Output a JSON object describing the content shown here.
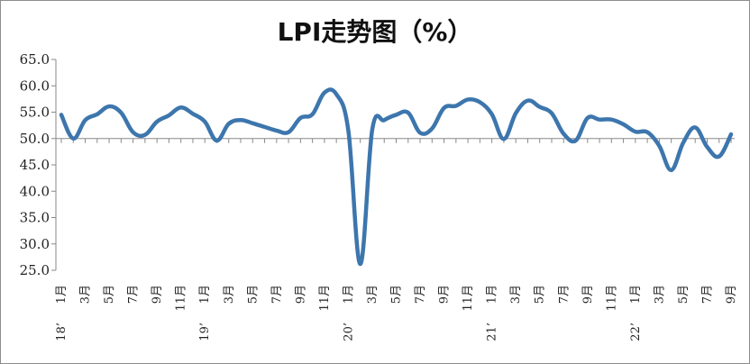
{
  "chart_data": {
    "type": "line",
    "title": "LPI走势图（%）",
    "xlabel": "",
    "ylabel": "",
    "ylim": [
      25,
      65
    ],
    "yticks": [
      "65.0",
      "60.0",
      "55.0",
      "50.0",
      "45.0",
      "40.0",
      "35.0",
      "30.0",
      "25.0"
    ],
    "baseline": 50,
    "grid": false,
    "color": "#3d76ad",
    "x": [
      "18’1月",
      "18’2月",
      "18’3月",
      "18’4月",
      "18’5月",
      "18’6月",
      "18’7月",
      "18’8月",
      "18’9月",
      "18’10月",
      "18’11月",
      "18’12月",
      "19’1月",
      "19’2月",
      "19’3月",
      "19’4月",
      "19’5月",
      "19’6月",
      "19’7月",
      "19’8月",
      "19’9月",
      "19’10月",
      "19’11月",
      "19’12月",
      "20’1月",
      "20’2月",
      "20’3月",
      "20’4月",
      "20’5月",
      "20’6月",
      "20’7月",
      "20’8月",
      "20’9月",
      "20’10月",
      "20’11月",
      "20’12月",
      "21’1月",
      "21’2月",
      "21’3月",
      "21’4月",
      "21’5月",
      "21’6月",
      "21’7月",
      "21’8月",
      "21’9月",
      "21’10月",
      "21’11月",
      "21’12月",
      "22’1月",
      "22’2月",
      "22’3月",
      "22’4月",
      "22’5月",
      "22’6月",
      "22’7月",
      "22’8月",
      "22’9月"
    ],
    "values": [
      54.5,
      50.0,
      53.5,
      54.6,
      56.1,
      54.9,
      51.2,
      50.7,
      53.2,
      54.4,
      55.9,
      54.7,
      53.2,
      49.6,
      52.8,
      53.5,
      52.9,
      52.2,
      51.5,
      51.2,
      53.9,
      54.6,
      58.7,
      58.4,
      51.5,
      26.2,
      51.7,
      53.5,
      54.5,
      54.9,
      51.1,
      51.9,
      55.8,
      56.2,
      57.4,
      56.9,
      54.6,
      49.9,
      54.8,
      57.2,
      56.0,
      54.8,
      50.9,
      49.6,
      53.9,
      53.6,
      53.6,
      52.7,
      51.3,
      51.2,
      48.6,
      44.0,
      49.2,
      52.1,
      48.4,
      46.6,
      50.8
    ],
    "xtick_labels": [
      {
        "i": 0,
        "month": "1月",
        "year": "18’"
      },
      {
        "i": 2,
        "month": "3月"
      },
      {
        "i": 4,
        "month": "5月"
      },
      {
        "i": 6,
        "month": "7月"
      },
      {
        "i": 8,
        "month": "9月"
      },
      {
        "i": 10,
        "month": "11月"
      },
      {
        "i": 12,
        "month": "1月",
        "year": "19’"
      },
      {
        "i": 14,
        "month": "3月"
      },
      {
        "i": 16,
        "month": "5月"
      },
      {
        "i": 18,
        "month": "7月"
      },
      {
        "i": 20,
        "month": "9月"
      },
      {
        "i": 22,
        "month": "11月"
      },
      {
        "i": 24,
        "month": "1月",
        "year": "20’"
      },
      {
        "i": 26,
        "month": "3月"
      },
      {
        "i": 28,
        "month": "5月"
      },
      {
        "i": 30,
        "month": "7月"
      },
      {
        "i": 32,
        "month": "9月"
      },
      {
        "i": 34,
        "month": "11月"
      },
      {
        "i": 36,
        "month": "1月",
        "year": "21’"
      },
      {
        "i": 38,
        "month": "3月"
      },
      {
        "i": 40,
        "month": "5月"
      },
      {
        "i": 42,
        "month": "7月"
      },
      {
        "i": 44,
        "month": "9月"
      },
      {
        "i": 46,
        "month": "11月"
      },
      {
        "i": 48,
        "month": "1月",
        "year": "22’"
      },
      {
        "i": 50,
        "month": "3月"
      },
      {
        "i": 52,
        "month": "5月"
      },
      {
        "i": 54,
        "month": "7月"
      },
      {
        "i": 56,
        "month": "9月"
      }
    ]
  }
}
